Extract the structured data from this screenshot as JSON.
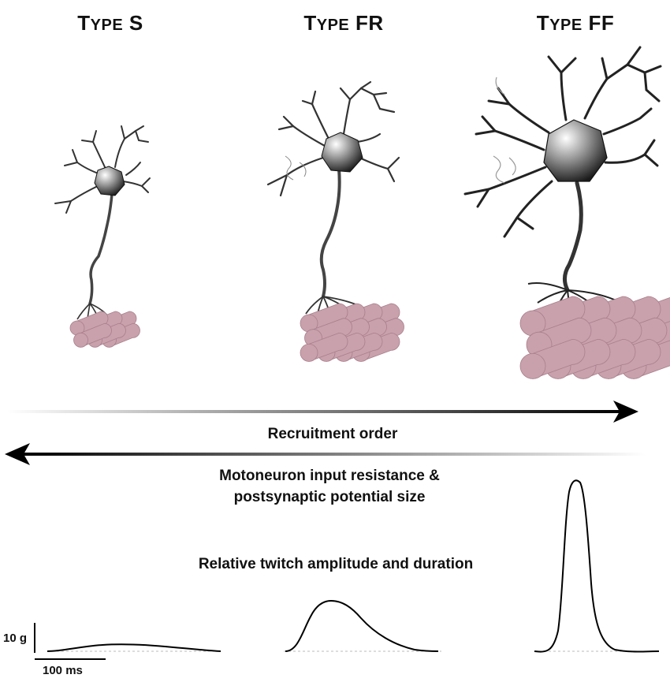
{
  "types": [
    {
      "prefix": "T",
      "rest": "YPE",
      "letters": "S"
    },
    {
      "prefix": "T",
      "rest": "YPE",
      "letters": "FR"
    },
    {
      "prefix": "T",
      "rest": "YPE",
      "letters": "FF"
    }
  ],
  "labels": {
    "recruitment": "Recruitment order",
    "resistance_line1": "Motoneuron input resistance &",
    "resistance_line2": "postsynaptic potential size",
    "twitch": "Relative twitch amplitude and duration"
  },
  "scale_bar": {
    "force": "10 g",
    "time": "100 ms"
  },
  "colors": {
    "muscle": "#c9a1ad",
    "muscle_edge": "#a87e8b",
    "neuron_dark": "#222222",
    "arrow": "#000000"
  }
}
